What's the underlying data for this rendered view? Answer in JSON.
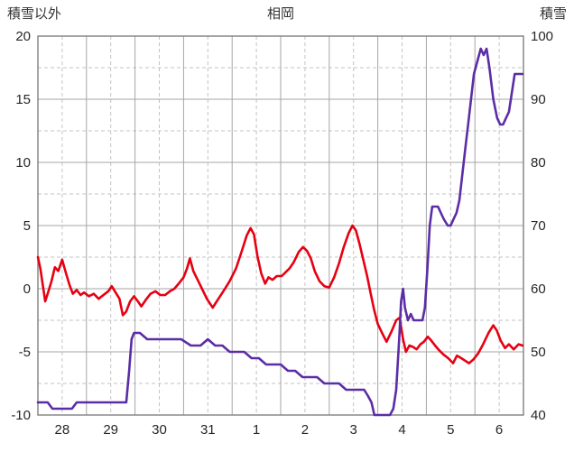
{
  "chart_data": {
    "type": "line",
    "title": "相岡",
    "left_axis": {
      "label": "積雪以外",
      "min": -10,
      "max": 20,
      "ticks": [
        -10,
        -5,
        0,
        5,
        10,
        15,
        20
      ]
    },
    "right_axis": {
      "label": "積雪",
      "min": 40,
      "max": 100,
      "ticks": [
        40,
        50,
        60,
        70,
        80,
        90,
        100
      ]
    },
    "x_axis": {
      "min": 0,
      "max": 10,
      "tick_positions": [
        0.5,
        1.5,
        2.5,
        3.5,
        4.5,
        5.5,
        6.5,
        7.5,
        8.5,
        9.5
      ],
      "day_labels": [
        "28",
        "29",
        "30",
        "31",
        "1",
        "2",
        "3",
        "4",
        "5",
        "6"
      ]
    },
    "style": {
      "grid_major": "#a6a6a6",
      "grid_minor": "#c3c3c3",
      "frame": "#7f7f7f",
      "text": "#262626",
      "background": "#ffffff",
      "series_red": "#e60012",
      "series_purple": "#5b2da6"
    },
    "series": [
      {
        "name": "積雪以外",
        "axis": "left",
        "color": "#e60012",
        "points": [
          [
            0.0,
            2.5
          ],
          [
            0.05,
            1.6
          ],
          [
            0.1,
            0.3
          ],
          [
            0.15,
            -1.0
          ],
          [
            0.2,
            -0.4
          ],
          [
            0.28,
            0.6
          ],
          [
            0.35,
            1.7
          ],
          [
            0.42,
            1.4
          ],
          [
            0.5,
            2.3
          ],
          [
            0.58,
            1.2
          ],
          [
            0.65,
            0.3
          ],
          [
            0.72,
            -0.4
          ],
          [
            0.8,
            -0.1
          ],
          [
            0.88,
            -0.5
          ],
          [
            0.95,
            -0.3
          ],
          [
            1.05,
            -0.6
          ],
          [
            1.15,
            -0.4
          ],
          [
            1.25,
            -0.8
          ],
          [
            1.35,
            -0.5
          ],
          [
            1.45,
            -0.2
          ],
          [
            1.52,
            0.2
          ],
          [
            1.6,
            -0.3
          ],
          [
            1.68,
            -0.8
          ],
          [
            1.75,
            -2.1
          ],
          [
            1.82,
            -1.8
          ],
          [
            1.9,
            -1.0
          ],
          [
            1.98,
            -0.6
          ],
          [
            2.06,
            -1.0
          ],
          [
            2.13,
            -1.4
          ],
          [
            2.22,
            -0.9
          ],
          [
            2.32,
            -0.4
          ],
          [
            2.42,
            -0.2
          ],
          [
            2.52,
            -0.5
          ],
          [
            2.62,
            -0.5
          ],
          [
            2.72,
            -0.2
          ],
          [
            2.81,
            0.0
          ],
          [
            2.9,
            0.4
          ],
          [
            3.0,
            0.9
          ],
          [
            3.07,
            1.6
          ],
          [
            3.13,
            2.4
          ],
          [
            3.2,
            1.4
          ],
          [
            3.29,
            0.7
          ],
          [
            3.38,
            0.0
          ],
          [
            3.48,
            -0.8
          ],
          [
            3.6,
            -1.5
          ],
          [
            3.7,
            -0.9
          ],
          [
            3.82,
            -0.2
          ],
          [
            3.95,
            0.6
          ],
          [
            4.08,
            1.6
          ],
          [
            4.2,
            3.0
          ],
          [
            4.3,
            4.2
          ],
          [
            4.38,
            4.8
          ],
          [
            4.45,
            4.3
          ],
          [
            4.52,
            2.6
          ],
          [
            4.6,
            1.2
          ],
          [
            4.68,
            0.4
          ],
          [
            4.75,
            0.9
          ],
          [
            4.83,
            0.7
          ],
          [
            4.92,
            1.0
          ],
          [
            5.02,
            1.0
          ],
          [
            5.1,
            1.3
          ],
          [
            5.18,
            1.6
          ],
          [
            5.27,
            2.1
          ],
          [
            5.37,
            2.9
          ],
          [
            5.46,
            3.3
          ],
          [
            5.54,
            3.0
          ],
          [
            5.62,
            2.4
          ],
          [
            5.7,
            1.4
          ],
          [
            5.8,
            0.6
          ],
          [
            5.9,
            0.2
          ],
          [
            6.0,
            0.1
          ],
          [
            6.1,
            0.9
          ],
          [
            6.2,
            2.0
          ],
          [
            6.3,
            3.3
          ],
          [
            6.4,
            4.4
          ],
          [
            6.48,
            5.0
          ],
          [
            6.55,
            4.6
          ],
          [
            6.62,
            3.6
          ],
          [
            6.7,
            2.3
          ],
          [
            6.78,
            1.0
          ],
          [
            6.85,
            -0.3
          ],
          [
            6.92,
            -1.6
          ],
          [
            7.0,
            -2.8
          ],
          [
            7.1,
            -3.6
          ],
          [
            7.18,
            -4.2
          ],
          [
            7.28,
            -3.4
          ],
          [
            7.38,
            -2.5
          ],
          [
            7.45,
            -2.3
          ],
          [
            7.52,
            -4.0
          ],
          [
            7.58,
            -5.0
          ],
          [
            7.65,
            -4.5
          ],
          [
            7.72,
            -4.6
          ],
          [
            7.8,
            -4.8
          ],
          [
            7.88,
            -4.4
          ],
          [
            7.95,
            -4.2
          ],
          [
            8.03,
            -3.8
          ],
          [
            8.1,
            -4.1
          ],
          [
            8.18,
            -4.5
          ],
          [
            8.27,
            -4.9
          ],
          [
            8.35,
            -5.2
          ],
          [
            8.45,
            -5.5
          ],
          [
            8.55,
            -5.9
          ],
          [
            8.63,
            -5.3
          ],
          [
            8.72,
            -5.5
          ],
          [
            8.8,
            -5.7
          ],
          [
            8.88,
            -5.9
          ],
          [
            8.97,
            -5.6
          ],
          [
            9.07,
            -5.1
          ],
          [
            9.17,
            -4.4
          ],
          [
            9.28,
            -3.5
          ],
          [
            9.38,
            -2.9
          ],
          [
            9.45,
            -3.3
          ],
          [
            9.53,
            -4.1
          ],
          [
            9.62,
            -4.7
          ],
          [
            9.7,
            -4.4
          ],
          [
            9.8,
            -4.8
          ],
          [
            9.9,
            -4.4
          ],
          [
            9.98,
            -4.5
          ]
        ]
      },
      {
        "name": "積雪",
        "axis": "right",
        "color": "#5b2da6",
        "points": [
          [
            0.0,
            42
          ],
          [
            0.2,
            42
          ],
          [
            0.3,
            41
          ],
          [
            0.5,
            41
          ],
          [
            0.7,
            41
          ],
          [
            0.8,
            42
          ],
          [
            1.0,
            42
          ],
          [
            1.2,
            42
          ],
          [
            1.4,
            42
          ],
          [
            1.6,
            42
          ],
          [
            1.75,
            42
          ],
          [
            1.82,
            42
          ],
          [
            1.88,
            47
          ],
          [
            1.93,
            52
          ],
          [
            1.98,
            53
          ],
          [
            2.1,
            53
          ],
          [
            2.25,
            52
          ],
          [
            2.4,
            52
          ],
          [
            2.55,
            52
          ],
          [
            2.75,
            52
          ],
          [
            2.95,
            52
          ],
          [
            3.15,
            51
          ],
          [
            3.35,
            51
          ],
          [
            3.5,
            52
          ],
          [
            3.65,
            51
          ],
          [
            3.8,
            51
          ],
          [
            3.95,
            50
          ],
          [
            4.1,
            50
          ],
          [
            4.25,
            50
          ],
          [
            4.4,
            49
          ],
          [
            4.55,
            49
          ],
          [
            4.7,
            48
          ],
          [
            4.85,
            48
          ],
          [
            5.0,
            48
          ],
          [
            5.15,
            47
          ],
          [
            5.3,
            47
          ],
          [
            5.45,
            46
          ],
          [
            5.6,
            46
          ],
          [
            5.75,
            46
          ],
          [
            5.9,
            45
          ],
          [
            6.05,
            45
          ],
          [
            6.2,
            45
          ],
          [
            6.35,
            44
          ],
          [
            6.5,
            44
          ],
          [
            6.62,
            44
          ],
          [
            6.72,
            44
          ],
          [
            6.8,
            43
          ],
          [
            6.87,
            42
          ],
          [
            6.93,
            40
          ],
          [
            7.05,
            40
          ],
          [
            7.15,
            40
          ],
          [
            7.25,
            40
          ],
          [
            7.32,
            41
          ],
          [
            7.38,
            44
          ],
          [
            7.44,
            52
          ],
          [
            7.48,
            58
          ],
          [
            7.52,
            60
          ],
          [
            7.56,
            57
          ],
          [
            7.62,
            55
          ],
          [
            7.68,
            56
          ],
          [
            7.74,
            55
          ],
          [
            7.8,
            55
          ],
          [
            7.86,
            55
          ],
          [
            7.92,
            55
          ],
          [
            7.97,
            57
          ],
          [
            8.02,
            63
          ],
          [
            8.07,
            70
          ],
          [
            8.12,
            73
          ],
          [
            8.18,
            73
          ],
          [
            8.24,
            73
          ],
          [
            8.3,
            72
          ],
          [
            8.36,
            71
          ],
          [
            8.44,
            70
          ],
          [
            8.5,
            70
          ],
          [
            8.56,
            71
          ],
          [
            8.62,
            72
          ],
          [
            8.68,
            74
          ],
          [
            8.74,
            78
          ],
          [
            8.8,
            82
          ],
          [
            8.86,
            86
          ],
          [
            8.92,
            90
          ],
          [
            8.98,
            94
          ],
          [
            9.05,
            96
          ],
          [
            9.12,
            98
          ],
          [
            9.18,
            97
          ],
          [
            9.24,
            98
          ],
          [
            9.3,
            95
          ],
          [
            9.38,
            90
          ],
          [
            9.46,
            87
          ],
          [
            9.52,
            86
          ],
          [
            9.58,
            86
          ],
          [
            9.64,
            87
          ],
          [
            9.7,
            88
          ],
          [
            9.76,
            91
          ],
          [
            9.82,
            94
          ],
          [
            9.88,
            94
          ],
          [
            9.94,
            94
          ],
          [
            9.98,
            94
          ]
        ]
      }
    ]
  }
}
